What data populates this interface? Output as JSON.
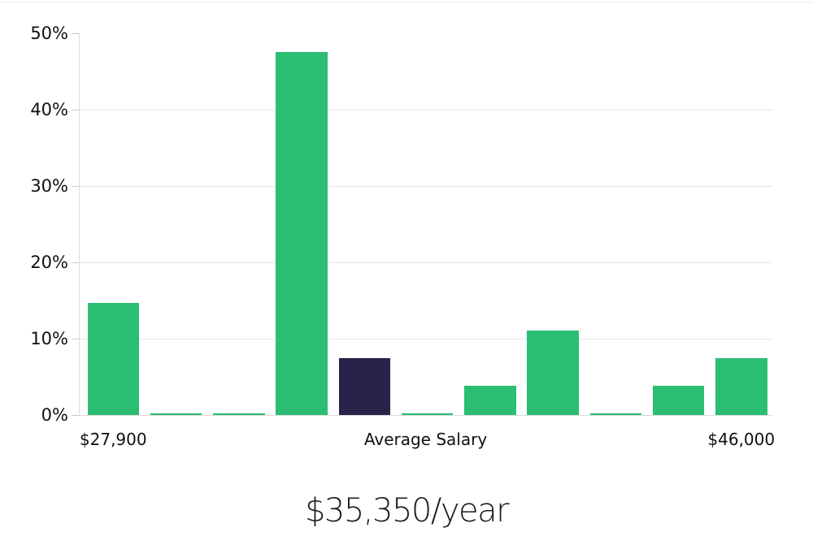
{
  "chart_data": {
    "type": "bar",
    "title": "$35,350/year",
    "ylabel": "",
    "xlabel": "",
    "ylim": [
      0,
      50
    ],
    "grid": "horizontal",
    "legend": "none",
    "colors": {
      "bar": "#2bbd72",
      "bar_highlight": "#292349",
      "gridline": "#e7e7e7",
      "axis": "#dcdcdc",
      "text": "#111111"
    },
    "y_ticks": [
      {
        "value": 0,
        "label": "0%",
        "gridline": false
      },
      {
        "value": 10,
        "label": "10%",
        "gridline": true
      },
      {
        "value": 20,
        "label": "20%",
        "gridline": true
      },
      {
        "value": 30,
        "label": "30%",
        "gridline": true
      },
      {
        "value": 40,
        "label": "40%",
        "gridline": true
      },
      {
        "value": 50,
        "label": "50%",
        "gridline": false
      }
    ],
    "bars": [
      {
        "value": 14.7,
        "role": "normal"
      },
      {
        "value": 0.2,
        "role": "normal"
      },
      {
        "value": 0.2,
        "role": "normal"
      },
      {
        "value": 47.6,
        "role": "normal"
      },
      {
        "value": 7.4,
        "role": "highlight-average-bin"
      },
      {
        "value": 0.2,
        "role": "normal"
      },
      {
        "value": 3.8,
        "role": "normal"
      },
      {
        "value": 11.1,
        "role": "normal"
      },
      {
        "value": 0.2,
        "role": "normal"
      },
      {
        "value": 3.8,
        "role": "normal"
      },
      {
        "value": 7.4,
        "role": "normal"
      }
    ],
    "x_axis_labels": [
      {
        "text": "$27,900",
        "anchor_bar": 0
      },
      {
        "text": "Average Salary",
        "anchor": "center"
      },
      {
        "text": "$46,000",
        "anchor_bar": 10
      }
    ]
  }
}
